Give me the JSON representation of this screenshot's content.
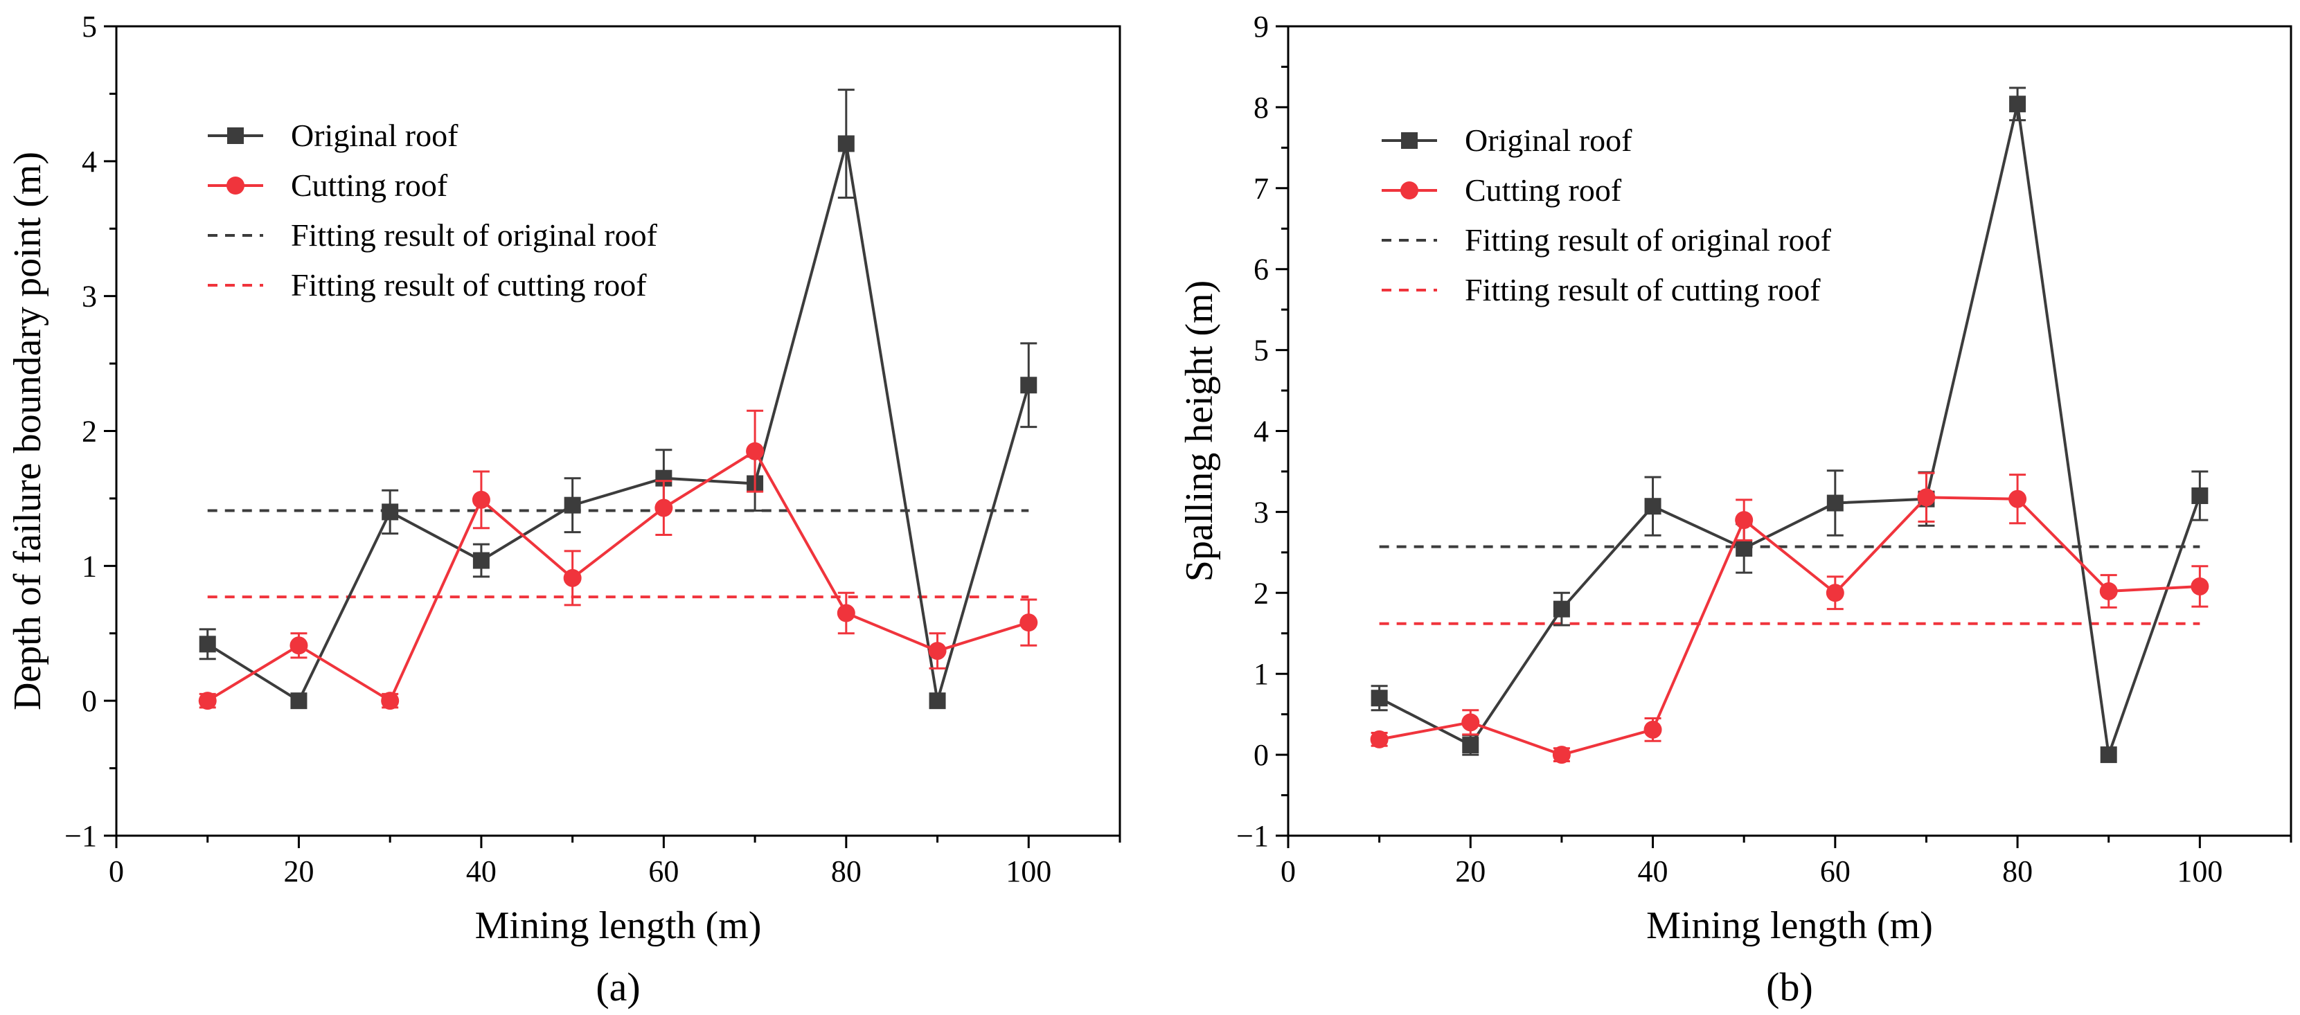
{
  "chart_data": [
    {
      "type": "line",
      "panel_label": "(a)",
      "xlabel": "Mining length (m)",
      "ylabel": "Depth of failure boundary point (m)",
      "xlim": [
        0,
        110
      ],
      "ylim": [
        -1,
        5
      ],
      "xticks": [
        0,
        20,
        40,
        60,
        80,
        100
      ],
      "xtick_labels": [
        "0",
        "20",
        "40",
        "60",
        "80",
        "100"
      ],
      "yticks": [
        -1,
        0,
        1,
        2,
        3,
        4,
        5
      ],
      "ytick_labels": [
        "−1",
        "0",
        "1",
        "2",
        "3",
        "4",
        "5"
      ],
      "legend_position": "top-left",
      "x": [
        10,
        20,
        30,
        40,
        50,
        60,
        70,
        80,
        90,
        100
      ],
      "series": [
        {
          "name": "Original roof",
          "color": "#3c3c3c",
          "marker": "square",
          "values": [
            0.42,
            0.0,
            1.4,
            1.04,
            1.45,
            1.65,
            1.61,
            4.13,
            0.0,
            2.34
          ],
          "errors": [
            0.11,
            0.0,
            0.16,
            0.12,
            0.2,
            0.21,
            0.2,
            0.4,
            0.0,
            0.31
          ]
        },
        {
          "name": "Cutting roof",
          "color": "#f0343c",
          "marker": "circle",
          "values": [
            0.0,
            0.41,
            0.0,
            1.49,
            0.91,
            1.43,
            1.85,
            0.65,
            0.37,
            0.58
          ],
          "errors": [
            0.05,
            0.09,
            0.05,
            0.21,
            0.2,
            0.2,
            0.3,
            0.15,
            0.13,
            0.17
          ]
        },
        {
          "name": "Fitting result of original roof",
          "color": "#3c3c3c",
          "style": "dashed",
          "x_range": [
            10,
            100
          ],
          "value": 1.41
        },
        {
          "name": "Fitting result of cutting roof",
          "color": "#f0343c",
          "style": "dashed",
          "x_range": [
            10,
            100
          ],
          "value": 0.77
        }
      ]
    },
    {
      "type": "line",
      "panel_label": "(b)",
      "xlabel": "Mining length (m)",
      "ylabel": "Spalling height (m)",
      "xlim": [
        0,
        110
      ],
      "ylim": [
        -1,
        9
      ],
      "xticks": [
        0,
        20,
        40,
        60,
        80,
        100
      ],
      "xtick_labels": [
        "0",
        "20",
        "40",
        "60",
        "80",
        "100"
      ],
      "yticks": [
        -1,
        0,
        1,
        2,
        3,
        4,
        5,
        6,
        7,
        8,
        9
      ],
      "ytick_labels": [
        "−1",
        "0",
        "1",
        "2",
        "3",
        "4",
        "5",
        "6",
        "7",
        "8",
        "9"
      ],
      "legend_position": "top-left",
      "x": [
        10,
        20,
        30,
        40,
        50,
        60,
        70,
        80,
        90,
        100
      ],
      "series": [
        {
          "name": "Original roof",
          "color": "#3c3c3c",
          "marker": "square",
          "values": [
            0.7,
            0.12,
            1.8,
            3.07,
            2.55,
            3.11,
            3.16,
            8.04,
            0.0,
            3.2
          ],
          "errors": [
            0.15,
            0.12,
            0.2,
            0.36,
            0.3,
            0.4,
            0.33,
            0.2,
            0.0,
            0.3
          ]
        },
        {
          "name": "Cutting roof",
          "color": "#f0343c",
          "marker": "circle",
          "values": [
            0.19,
            0.4,
            0.0,
            0.31,
            2.9,
            2.0,
            3.18,
            3.16,
            2.02,
            2.08
          ],
          "errors": [
            0.08,
            0.15,
            0.08,
            0.14,
            0.25,
            0.2,
            0.3,
            0.3,
            0.2,
            0.25
          ]
        },
        {
          "name": "Fitting result of original roof",
          "color": "#3c3c3c",
          "style": "dashed",
          "x_range": [
            10,
            100
          ],
          "value": 2.57
        },
        {
          "name": "Fitting result of cutting roof",
          "color": "#f0343c",
          "style": "dashed",
          "x_range": [
            10,
            100
          ],
          "value": 1.62
        }
      ]
    }
  ]
}
